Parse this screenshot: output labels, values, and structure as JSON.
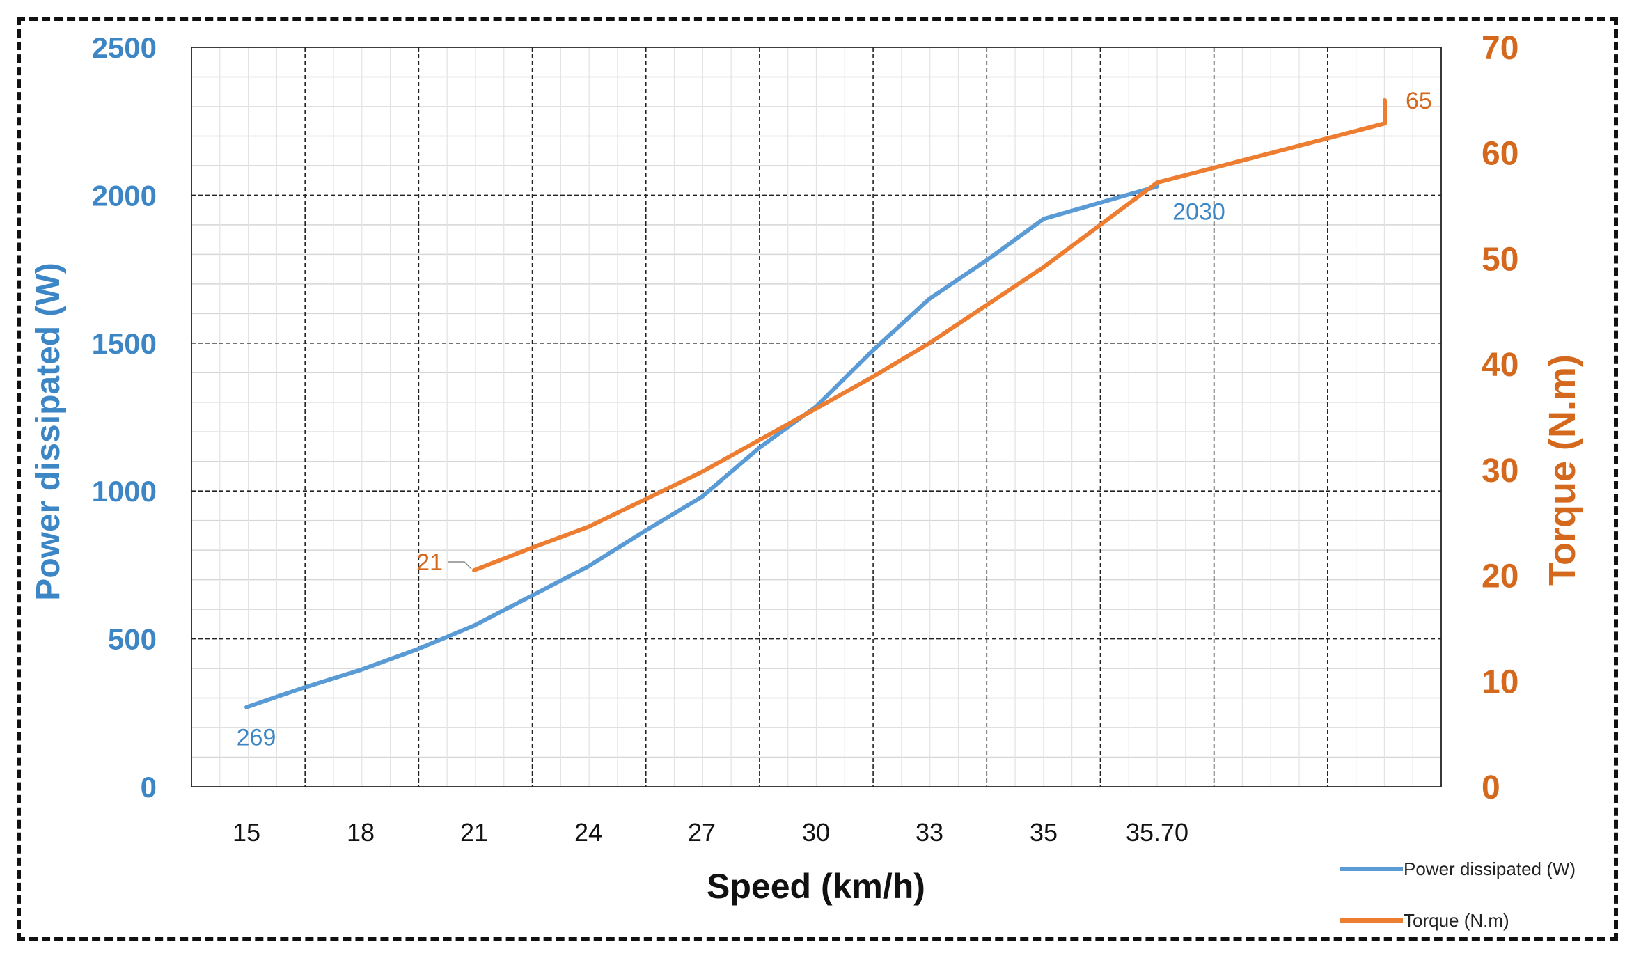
{
  "chart_data": {
    "type": "line",
    "title": "",
    "xlabel": "Speed (km/h)",
    "ylabel_left": "Power dissipated (W)",
    "ylabel_right": "Torque (N.m)",
    "categories": [
      "15",
      "18",
      "21",
      "24",
      "27",
      "30",
      "33",
      "35",
      "35.70",
      "",
      "",
      ""
    ],
    "ylim_left": [
      0,
      2500
    ],
    "ylim_right": [
      0,
      70
    ],
    "yticks_left": [
      "0",
      "500",
      "1000",
      "1500",
      "2000",
      "2500"
    ],
    "yticks_right": [
      "0",
      "10",
      "20",
      "30",
      "40",
      "50",
      "60",
      "70"
    ],
    "grid": true,
    "legend_position": "bottom-right",
    "series": [
      {
        "name": "Power dissipated (W)",
        "axis": "left",
        "color": "#5b9bd5",
        "x": [
          15,
          16.5,
          18,
          19.5,
          21,
          22.5,
          24,
          25.5,
          27,
          28.5,
          30,
          31.5,
          33,
          34,
          35,
          35.35,
          35.7
        ],
        "values": [
          269,
          335,
          395,
          465,
          545,
          645,
          745,
          865,
          980,
          1145,
          1285,
          1475,
          1650,
          1780,
          1920,
          1975,
          2030
        ]
      },
      {
        "name": "Torque (N.m)",
        "axis": "right",
        "color": "#ed7d31",
        "x": [
          21,
          22.5,
          24,
          25.5,
          27,
          28.5,
          30,
          31.5,
          33,
          34,
          35,
          35.35,
          35.7,
          36.7,
          37.7,
          38.7
        ],
        "values": [
          20.5,
          22.6,
          24.6,
          27.2,
          29.8,
          32.8,
          35.8,
          38.8,
          42.0,
          45.6,
          49.2,
          53.2,
          57.2,
          60.0,
          62.8,
          65.0
        ]
      }
    ],
    "annotations": [
      {
        "series": "Power dissipated (W)",
        "text": "269"
      },
      {
        "series": "Power dissipated (W)",
        "text": "2030"
      },
      {
        "series": "Torque (N.m)",
        "text": "21"
      },
      {
        "series": "Torque (N.m)",
        "text": "65"
      }
    ]
  }
}
